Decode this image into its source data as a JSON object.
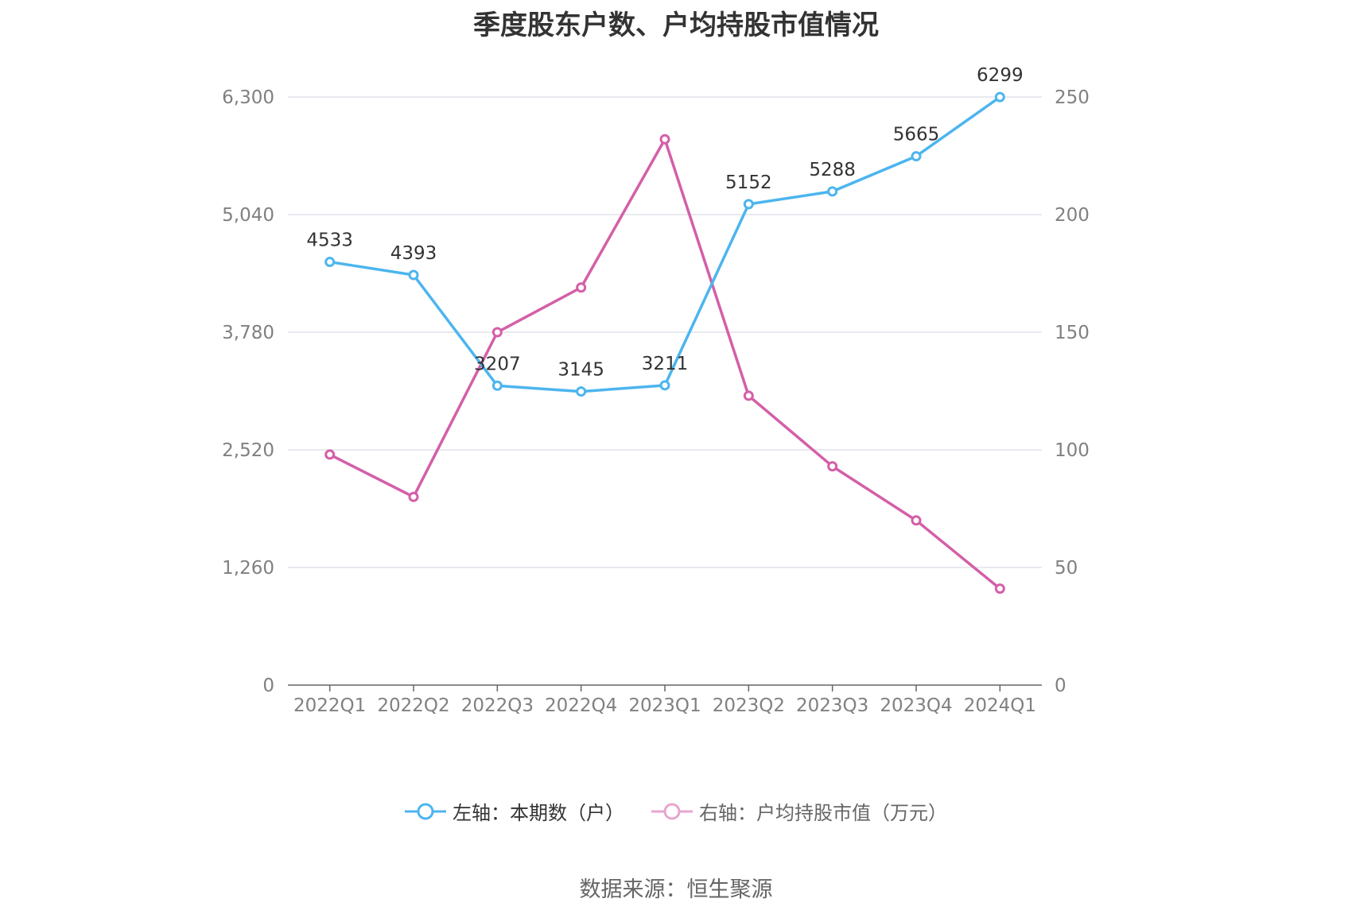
{
  "chart_data": {
    "type": "line",
    "title": "季度股东户数、户均持股市值情况",
    "categories": [
      "2022Q1",
      "2022Q2",
      "2022Q3",
      "2022Q4",
      "2023Q1",
      "2023Q2",
      "2023Q3",
      "2023Q4",
      "2024Q1"
    ],
    "series": [
      {
        "name": "左轴：本期数（户）",
        "axis": "left",
        "color": "#4cb5ef",
        "values": [
          4533,
          4393,
          3207,
          3145,
          3211,
          5152,
          5288,
          5665,
          6299
        ],
        "labels": [
          "4533",
          "4393",
          "3207",
          "3145",
          "3211",
          "5152",
          "5288",
          "5665",
          "6299"
        ]
      },
      {
        "name": "右轴：户均持股市值（万元）",
        "axis": "right",
        "color": "#d45fa8",
        "legend_color": "#e8a5cf",
        "values": [
          98,
          80,
          150,
          169,
          232,
          123,
          93,
          70,
          41
        ]
      }
    ],
    "y_left": {
      "ylim": [
        0,
        6300
      ],
      "ticks": [
        "0",
        "1,260",
        "2,520",
        "3,780",
        "5,040",
        "6,300"
      ]
    },
    "y_right": {
      "ylim": [
        0,
        250
      ],
      "ticks": [
        "0",
        "50",
        "100",
        "150",
        "200",
        "250"
      ]
    },
    "grid": true,
    "legend_position": "bottom"
  },
  "source": "数据来源：恒生聚源"
}
